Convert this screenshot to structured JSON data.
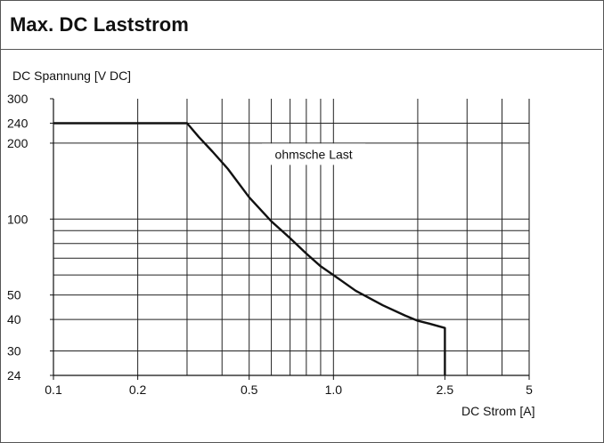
{
  "chart_data": {
    "type": "line",
    "title": "Max. DC Laststrom",
    "ylabel": "DC Spannung  [V DC]",
    "xlabel": "DC Strom [A]",
    "x_scale": "log",
    "y_scale": "log",
    "xlim": [
      0.1,
      5
    ],
    "ylim": [
      24,
      300
    ],
    "x_ticks": [
      {
        "value": 0.1,
        "label": "0.1"
      },
      {
        "value": 0.2,
        "label": "0.2"
      },
      {
        "value": 0.5,
        "label": "0.5"
      },
      {
        "value": 1.0,
        "label": "1.0"
      },
      {
        "value": 2.5,
        "label": "2.5"
      },
      {
        "value": 5,
        "label": "5"
      }
    ],
    "y_ticks": [
      {
        "value": 300,
        "label": "300"
      },
      {
        "value": 240,
        "label": "240"
      },
      {
        "value": 200,
        "label": "200"
      },
      {
        "value": 100,
        "label": "100"
      },
      {
        "value": 50,
        "label": "50"
      },
      {
        "value": 40,
        "label": "40"
      },
      {
        "value": 30,
        "label": "30"
      },
      {
        "value": 24,
        "label": "24"
      }
    ],
    "x_grid": [
      0.2,
      0.3,
      0.4,
      0.5,
      0.6,
      0.7,
      0.8,
      0.9,
      1.0,
      2.0,
      3.0,
      4.0
    ],
    "y_grid": [
      30,
      40,
      50,
      60,
      70,
      80,
      90,
      100,
      200,
      240
    ],
    "grid": true,
    "series": [
      {
        "x": [
          0.1,
          0.3,
          0.33,
          0.37,
          0.42,
          0.5,
          0.6,
          0.7,
          0.8,
          0.9,
          1.0,
          1.2,
          1.5,
          1.8,
          2.0,
          2.2,
          2.5,
          2.5
        ],
        "y": [
          240,
          240,
          212,
          185,
          158,
          122,
          98,
          84,
          73,
          65,
          60,
          52,
          45.5,
          41.5,
          39.5,
          38.5,
          37,
          24
        ],
        "color": "#111111"
      }
    ],
    "annotations": [
      {
        "text": "ohmsche Last",
        "x": 0.85,
        "y": 175
      }
    ]
  }
}
